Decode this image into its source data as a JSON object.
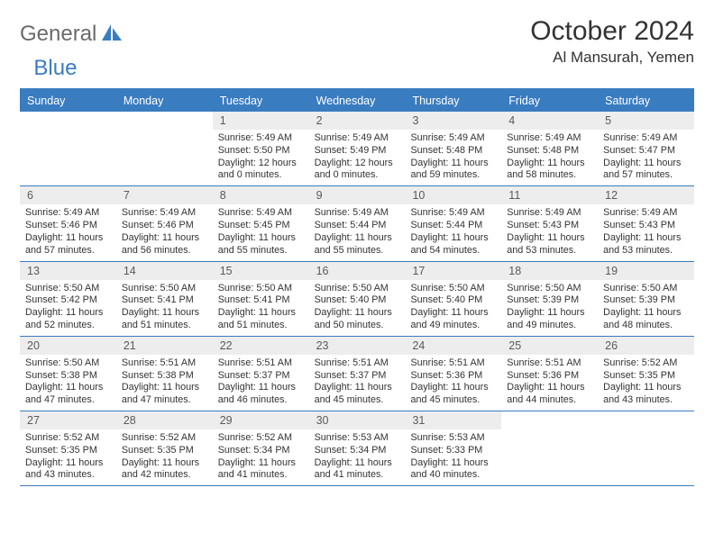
{
  "brand": {
    "part1": "General",
    "part2": "Blue"
  },
  "header": {
    "month_title": "October 2024",
    "location": "Al Mansurah, Yemen"
  },
  "colors": {
    "accent": "#3a7cc0",
    "header_text": "#ffffff",
    "daynum_bg": "#ededed",
    "text": "#333333",
    "logo_gray": "#6a6a6a"
  },
  "weekdays": [
    "Sunday",
    "Monday",
    "Tuesday",
    "Wednesday",
    "Thursday",
    "Friday",
    "Saturday"
  ],
  "weeks": [
    [
      {
        "n": "",
        "sr": "",
        "ss": "",
        "dl": ""
      },
      {
        "n": "",
        "sr": "",
        "ss": "",
        "dl": ""
      },
      {
        "n": "1",
        "sr": "5:49 AM",
        "ss": "5:50 PM",
        "dl": "12 hours and 0 minutes."
      },
      {
        "n": "2",
        "sr": "5:49 AM",
        "ss": "5:49 PM",
        "dl": "12 hours and 0 minutes."
      },
      {
        "n": "3",
        "sr": "5:49 AM",
        "ss": "5:48 PM",
        "dl": "11 hours and 59 minutes."
      },
      {
        "n": "4",
        "sr": "5:49 AM",
        "ss": "5:48 PM",
        "dl": "11 hours and 58 minutes."
      },
      {
        "n": "5",
        "sr": "5:49 AM",
        "ss": "5:47 PM",
        "dl": "11 hours and 57 minutes."
      }
    ],
    [
      {
        "n": "6",
        "sr": "5:49 AM",
        "ss": "5:46 PM",
        "dl": "11 hours and 57 minutes."
      },
      {
        "n": "7",
        "sr": "5:49 AM",
        "ss": "5:46 PM",
        "dl": "11 hours and 56 minutes."
      },
      {
        "n": "8",
        "sr": "5:49 AM",
        "ss": "5:45 PM",
        "dl": "11 hours and 55 minutes."
      },
      {
        "n": "9",
        "sr": "5:49 AM",
        "ss": "5:44 PM",
        "dl": "11 hours and 55 minutes."
      },
      {
        "n": "10",
        "sr": "5:49 AM",
        "ss": "5:44 PM",
        "dl": "11 hours and 54 minutes."
      },
      {
        "n": "11",
        "sr": "5:49 AM",
        "ss": "5:43 PM",
        "dl": "11 hours and 53 minutes."
      },
      {
        "n": "12",
        "sr": "5:49 AM",
        "ss": "5:43 PM",
        "dl": "11 hours and 53 minutes."
      }
    ],
    [
      {
        "n": "13",
        "sr": "5:50 AM",
        "ss": "5:42 PM",
        "dl": "11 hours and 52 minutes."
      },
      {
        "n": "14",
        "sr": "5:50 AM",
        "ss": "5:41 PM",
        "dl": "11 hours and 51 minutes."
      },
      {
        "n": "15",
        "sr": "5:50 AM",
        "ss": "5:41 PM",
        "dl": "11 hours and 51 minutes."
      },
      {
        "n": "16",
        "sr": "5:50 AM",
        "ss": "5:40 PM",
        "dl": "11 hours and 50 minutes."
      },
      {
        "n": "17",
        "sr": "5:50 AM",
        "ss": "5:40 PM",
        "dl": "11 hours and 49 minutes."
      },
      {
        "n": "18",
        "sr": "5:50 AM",
        "ss": "5:39 PM",
        "dl": "11 hours and 49 minutes."
      },
      {
        "n": "19",
        "sr": "5:50 AM",
        "ss": "5:39 PM",
        "dl": "11 hours and 48 minutes."
      }
    ],
    [
      {
        "n": "20",
        "sr": "5:50 AM",
        "ss": "5:38 PM",
        "dl": "11 hours and 47 minutes."
      },
      {
        "n": "21",
        "sr": "5:51 AM",
        "ss": "5:38 PM",
        "dl": "11 hours and 47 minutes."
      },
      {
        "n": "22",
        "sr": "5:51 AM",
        "ss": "5:37 PM",
        "dl": "11 hours and 46 minutes."
      },
      {
        "n": "23",
        "sr": "5:51 AM",
        "ss": "5:37 PM",
        "dl": "11 hours and 45 minutes."
      },
      {
        "n": "24",
        "sr": "5:51 AM",
        "ss": "5:36 PM",
        "dl": "11 hours and 45 minutes."
      },
      {
        "n": "25",
        "sr": "5:51 AM",
        "ss": "5:36 PM",
        "dl": "11 hours and 44 minutes."
      },
      {
        "n": "26",
        "sr": "5:52 AM",
        "ss": "5:35 PM",
        "dl": "11 hours and 43 minutes."
      }
    ],
    [
      {
        "n": "27",
        "sr": "5:52 AM",
        "ss": "5:35 PM",
        "dl": "11 hours and 43 minutes."
      },
      {
        "n": "28",
        "sr": "5:52 AM",
        "ss": "5:35 PM",
        "dl": "11 hours and 42 minutes."
      },
      {
        "n": "29",
        "sr": "5:52 AM",
        "ss": "5:34 PM",
        "dl": "11 hours and 41 minutes."
      },
      {
        "n": "30",
        "sr": "5:53 AM",
        "ss": "5:34 PM",
        "dl": "11 hours and 41 minutes."
      },
      {
        "n": "31",
        "sr": "5:53 AM",
        "ss": "5:33 PM",
        "dl": "11 hours and 40 minutes."
      },
      {
        "n": "",
        "sr": "",
        "ss": "",
        "dl": ""
      },
      {
        "n": "",
        "sr": "",
        "ss": "",
        "dl": ""
      }
    ]
  ],
  "labels": {
    "sunrise": "Sunrise:",
    "sunset": "Sunset:",
    "daylight": "Daylight:"
  }
}
